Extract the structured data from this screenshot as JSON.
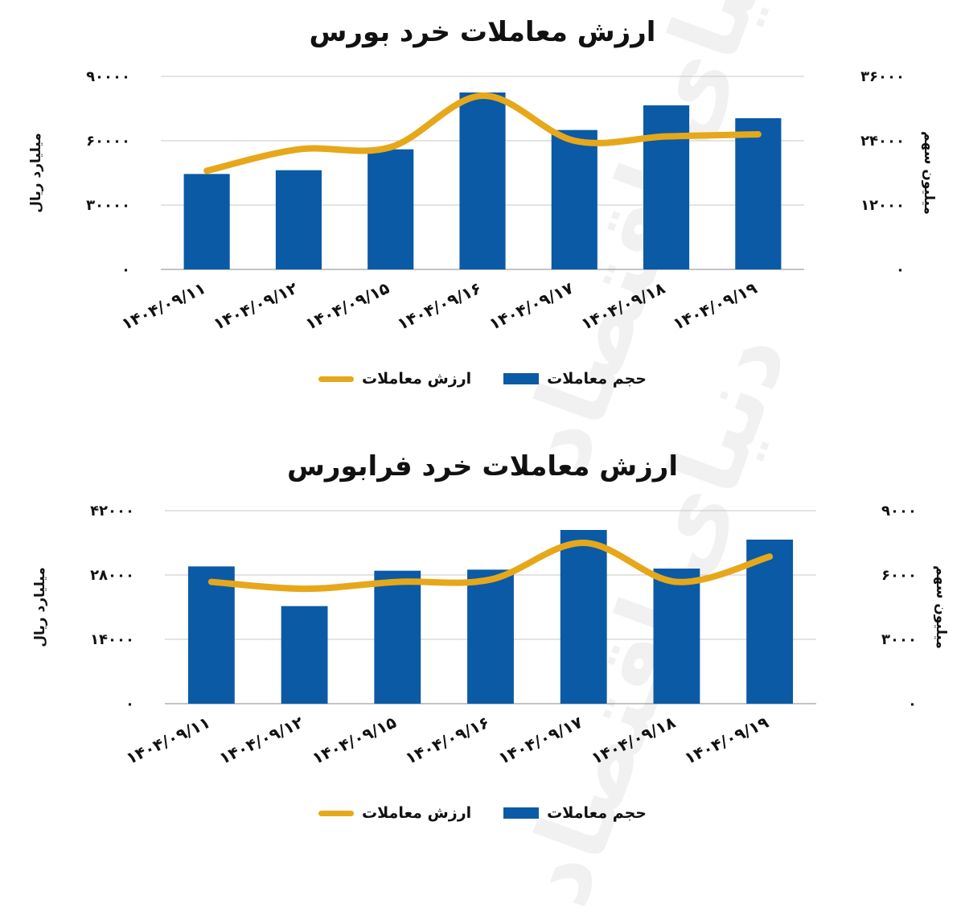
{
  "colors": {
    "bar": "#0b5aa6",
    "line": "#e6a81a",
    "grid": "#c9c9c9"
  },
  "legend": {
    "bar_label": "حجم معاملات",
    "line_label": "ارزش معاملات"
  },
  "axis_labels": {
    "left": "میلیارد ریال",
    "right": "میلیون سهم"
  },
  "watermark": "دنیای اقتصاد",
  "chart_data": [
    {
      "type": "bar",
      "title": "ارزش معاملات خرد بورس",
      "categories": [
        "۱۴۰۴/۰۹/۱۱",
        "۱۴۰۴/۰۹/۱۲",
        "۱۴۰۴/۰۹/۱۵",
        "۱۴۰۴/۰۹/۱۶",
        "۱۴۰۴/۰۹/۱۷",
        "۱۴۰۴/۰۹/۱۸",
        "۱۴۰۴/۰۹/۱۹"
      ],
      "ylabel_left": "میلیارد ریال",
      "ylabel_right": "میلیون سهم",
      "left_axis": {
        "ylim": [
          0,
          90000
        ],
        "ticks": [
          "۰",
          "۳۰۰۰۰",
          "۶۰۰۰۰",
          "۹۰۰۰۰"
        ]
      },
      "right_axis": {
        "ylim": [
          0,
          36000
        ],
        "ticks": [
          "۰",
          "۱۲۰۰۰",
          "۲۴۰۰۰",
          "۳۶۰۰۰"
        ]
      },
      "series": [
        {
          "name": "حجم معاملات",
          "type": "bar",
          "axis": "right",
          "values": [
            17800,
            18500,
            22400,
            33000,
            26000,
            30600,
            28200
          ]
        },
        {
          "name": "ارزش معاملات",
          "type": "line",
          "axis": "left",
          "values": [
            46000,
            56000,
            57000,
            81000,
            60000,
            62000,
            63000
          ]
        }
      ],
      "grid": true,
      "legend_position": "bottom"
    },
    {
      "type": "bar",
      "title": "ارزش معاملات خرد فرابورس",
      "categories": [
        "۱۴۰۴/۰۹/۱۱",
        "۱۴۰۴/۰۹/۱۲",
        "۱۴۰۴/۰۹/۱۵",
        "۱۴۰۴/۰۹/۱۶",
        "۱۴۰۴/۰۹/۱۷",
        "۱۴۰۴/۰۹/۱۸",
        "۱۴۰۴/۰۹/۱۹"
      ],
      "ylabel_left": "میلیارد ریال",
      "ylabel_right": "میلیون سهم",
      "left_axis": {
        "ylim": [
          0,
          42000
        ],
        "ticks": [
          "۰",
          "۱۴۰۰۰",
          "۲۸۰۰۰",
          "۴۲۰۰۰"
        ]
      },
      "right_axis": {
        "ylim": [
          0,
          9000
        ],
        "ticks": [
          "۰",
          "۳۰۰۰",
          "۶۰۰۰",
          "۹۰۰۰"
        ]
      },
      "series": [
        {
          "name": "حجم معاملات",
          "type": "bar",
          "axis": "right",
          "values": [
            6400,
            4550,
            6200,
            6250,
            8100,
            6300,
            7650
          ]
        },
        {
          "name": "ارزش معاملات",
          "type": "line",
          "axis": "left",
          "values": [
            26500,
            25000,
            26500,
            27000,
            35000,
            26500,
            32000
          ]
        }
      ],
      "grid": true,
      "legend_position": "bottom"
    }
  ]
}
